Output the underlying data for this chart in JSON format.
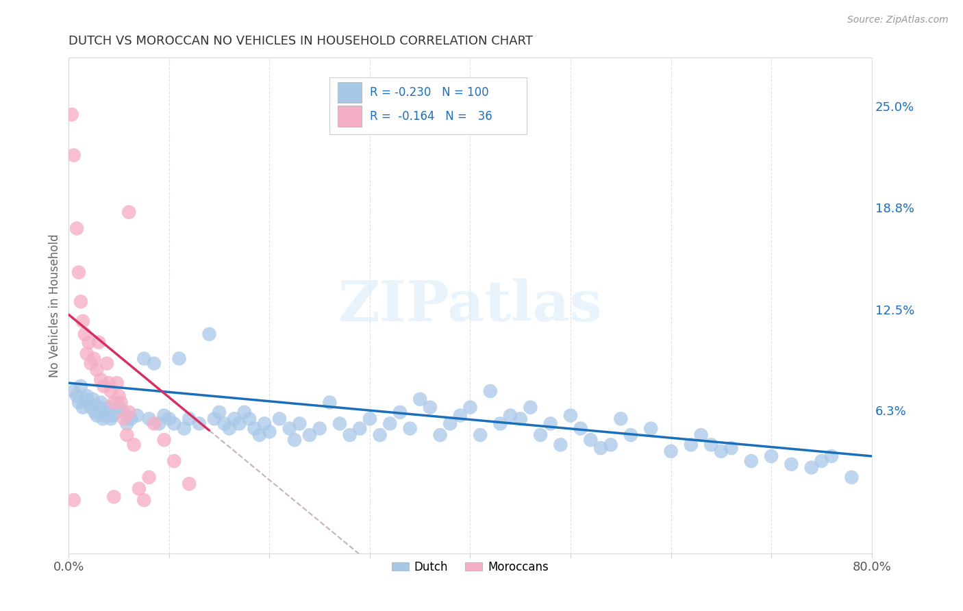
{
  "title": "DUTCH VS MOROCCAN NO VEHICLES IN HOUSEHOLD CORRELATION CHART",
  "source": "Source: ZipAtlas.com",
  "ylabel": "No Vehicles in Household",
  "xlim": [
    0,
    0.8
  ],
  "ylim": [
    -0.025,
    0.28
  ],
  "ytick_right_positions": [
    0.063,
    0.125,
    0.188,
    0.25
  ],
  "ytick_right_labels": [
    "6.3%",
    "12.5%",
    "18.8%",
    "25.0%"
  ],
  "dutch_color": "#a8c8e8",
  "moroccan_color": "#f5afc5",
  "dutch_line_color": "#1a6fba",
  "moroccan_line_color": "#d63060",
  "moroccan_dashed_color": "#c8b0be",
  "R_dutch": -0.23,
  "N_dutch": 100,
  "R_moroccan": -0.164,
  "N_moroccan": 36,
  "legend_dutch": "Dutch",
  "legend_moroccan": "Moroccans",
  "watermark": "ZIPatlas",
  "background_color": "#ffffff",
  "grid_color": "#cccccc",
  "dutch_x": [
    0.005,
    0.008,
    0.01,
    0.012,
    0.014,
    0.016,
    0.018,
    0.02,
    0.022,
    0.024,
    0.026,
    0.028,
    0.03,
    0.032,
    0.034,
    0.036,
    0.038,
    0.04,
    0.042,
    0.044,
    0.05,
    0.055,
    0.058,
    0.062,
    0.068,
    0.075,
    0.08,
    0.085,
    0.09,
    0.095,
    0.1,
    0.105,
    0.11,
    0.115,
    0.12,
    0.13,
    0.14,
    0.145,
    0.15,
    0.155,
    0.16,
    0.165,
    0.17,
    0.175,
    0.18,
    0.185,
    0.19,
    0.195,
    0.2,
    0.21,
    0.22,
    0.225,
    0.23,
    0.24,
    0.25,
    0.26,
    0.27,
    0.28,
    0.29,
    0.3,
    0.31,
    0.32,
    0.33,
    0.34,
    0.35,
    0.36,
    0.37,
    0.38,
    0.39,
    0.4,
    0.41,
    0.42,
    0.43,
    0.44,
    0.45,
    0.46,
    0.47,
    0.48,
    0.49,
    0.5,
    0.51,
    0.52,
    0.53,
    0.54,
    0.55,
    0.56,
    0.58,
    0.6,
    0.62,
    0.63,
    0.64,
    0.65,
    0.66,
    0.68,
    0.7,
    0.72,
    0.74,
    0.75,
    0.76,
    0.78
  ],
  "dutch_y": [
    0.075,
    0.072,
    0.068,
    0.078,
    0.065,
    0.07,
    0.072,
    0.068,
    0.065,
    0.07,
    0.062,
    0.06,
    0.065,
    0.068,
    0.058,
    0.06,
    0.062,
    0.065,
    0.058,
    0.06,
    0.065,
    0.062,
    0.055,
    0.058,
    0.06,
    0.095,
    0.058,
    0.092,
    0.055,
    0.06,
    0.058,
    0.055,
    0.095,
    0.052,
    0.058,
    0.055,
    0.11,
    0.058,
    0.062,
    0.055,
    0.052,
    0.058,
    0.055,
    0.062,
    0.058,
    0.052,
    0.048,
    0.055,
    0.05,
    0.058,
    0.052,
    0.045,
    0.055,
    0.048,
    0.052,
    0.068,
    0.055,
    0.048,
    0.052,
    0.058,
    0.048,
    0.055,
    0.062,
    0.052,
    0.07,
    0.065,
    0.048,
    0.055,
    0.06,
    0.065,
    0.048,
    0.075,
    0.055,
    0.06,
    0.058,
    0.065,
    0.048,
    0.055,
    0.042,
    0.06,
    0.052,
    0.045,
    0.04,
    0.042,
    0.058,
    0.048,
    0.052,
    0.038,
    0.042,
    0.048,
    0.042,
    0.038,
    0.04,
    0.032,
    0.035,
    0.03,
    0.028,
    0.032,
    0.035,
    0.022
  ],
  "moroccan_x": [
    0.003,
    0.005,
    0.008,
    0.01,
    0.012,
    0.014,
    0.016,
    0.018,
    0.02,
    0.022,
    0.025,
    0.028,
    0.03,
    0.032,
    0.035,
    0.038,
    0.04,
    0.042,
    0.045,
    0.048,
    0.05,
    0.052,
    0.055,
    0.058,
    0.06,
    0.065,
    0.07,
    0.075,
    0.08,
    0.085,
    0.095,
    0.105,
    0.12,
    0.005,
    0.045,
    0.06
  ],
  "moroccan_y": [
    0.245,
    0.22,
    0.175,
    0.148,
    0.13,
    0.118,
    0.11,
    0.098,
    0.105,
    0.092,
    0.095,
    0.088,
    0.105,
    0.082,
    0.078,
    0.092,
    0.08,
    0.075,
    0.068,
    0.08,
    0.072,
    0.068,
    0.058,
    0.048,
    0.062,
    0.042,
    0.015,
    0.008,
    0.022,
    0.055,
    0.045,
    0.032,
    0.018,
    0.008,
    0.01,
    0.185
  ]
}
